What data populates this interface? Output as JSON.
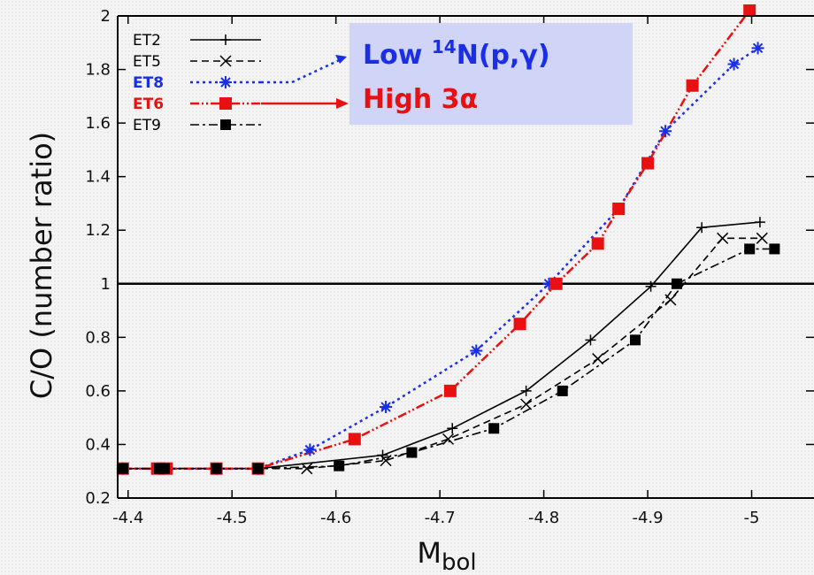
{
  "chart_data": {
    "type": "line",
    "xlabel_main": "M",
    "xlabel_sub": "bol",
    "ylabel": "C/O (number ratio)",
    "xlim": [
      -4.39,
      -5.06
    ],
    "ylim": [
      0.2,
      2.0
    ],
    "x_ticks": [
      -4.4,
      -4.5,
      -4.6,
      -4.7,
      -4.8,
      -4.9,
      -5
    ],
    "x_tick_labels": [
      "-4.4",
      "-4.5",
      "-4.6",
      "-4.7",
      "-4.8",
      "-4.9",
      "-5"
    ],
    "y_ticks": [
      0.2,
      0.4,
      0.6,
      0.8,
      1.0,
      1.2,
      1.4,
      1.6,
      1.8,
      2.0
    ],
    "y_tick_labels": [
      "0.2",
      "0.4",
      "0.6",
      "0.8",
      "1",
      "1.2",
      "1.4",
      "1.6",
      "1.8",
      "2"
    ],
    "reference_line_y": 1.0,
    "legend_position": "top-left",
    "series": [
      {
        "name": "ET2",
        "color": "#000000",
        "dash": "solid",
        "marker": "plus",
        "x": [
          -4.395,
          -4.43,
          -4.435,
          -4.485,
          -4.525,
          -4.645,
          -4.712,
          -4.783,
          -4.845,
          -4.903,
          -4.952,
          -5.008
        ],
        "y": [
          0.31,
          0.31,
          0.31,
          0.31,
          0.31,
          0.36,
          0.46,
          0.6,
          0.79,
          0.99,
          1.21,
          1.23
        ]
      },
      {
        "name": "ET5",
        "color": "#000000",
        "dash": "dashed",
        "marker": "x",
        "x": [
          -4.395,
          -4.43,
          -4.435,
          -4.485,
          -4.525,
          -4.572,
          -4.648,
          -4.708,
          -4.783,
          -4.852,
          -4.922,
          -4.972,
          -5.01
        ],
        "y": [
          0.31,
          0.31,
          0.31,
          0.31,
          0.31,
          0.31,
          0.34,
          0.42,
          0.55,
          0.72,
          0.94,
          1.17,
          1.17
        ]
      },
      {
        "name": "ET8",
        "color": "#1a2ee6",
        "dash": "dotted",
        "marker": "asterisk",
        "x": [
          -4.395,
          -4.43,
          -4.435,
          -4.485,
          -4.525,
          -4.575,
          -4.648,
          -4.735,
          -4.805,
          -4.872,
          -4.917,
          -4.983,
          -5.006
        ],
        "y": [
          0.31,
          0.31,
          0.31,
          0.31,
          0.31,
          0.38,
          0.54,
          0.75,
          1.0,
          1.28,
          1.57,
          1.82,
          1.88
        ]
      },
      {
        "name": "ET6",
        "color": "#e81010",
        "dash": "dashdotdot",
        "marker": "square",
        "x": [
          -4.395,
          -4.428,
          -4.437,
          -4.485,
          -4.525,
          -4.618,
          -4.71,
          -4.777,
          -4.812,
          -4.852,
          -4.872,
          -4.9,
          -4.943,
          -4.998
        ],
        "y": [
          0.31,
          0.31,
          0.31,
          0.31,
          0.31,
          0.42,
          0.6,
          0.85,
          1.0,
          1.15,
          1.28,
          1.45,
          1.74,
          2.02
        ]
      },
      {
        "name": "ET9",
        "color": "#000000",
        "dash": "dashdot",
        "marker": "filled-square",
        "x": [
          -4.395,
          -4.43,
          -4.435,
          -4.485,
          -4.525,
          -4.603,
          -4.673,
          -4.752,
          -4.818,
          -4.888,
          -4.928,
          -4.998,
          -5.022
        ],
        "y": [
          0.31,
          0.31,
          0.31,
          0.31,
          0.31,
          0.32,
          0.37,
          0.46,
          0.6,
          0.79,
          1.0,
          1.13,
          1.13
        ]
      }
    ],
    "annotation": {
      "bg_color": "#d0d4f6",
      "line1": {
        "text": "Low ",
        "sup": "14",
        "rest": "N(p,γ)",
        "color": "#1a2ee6"
      },
      "line2": {
        "text": "High 3α",
        "color": "#e81010"
      }
    }
  }
}
